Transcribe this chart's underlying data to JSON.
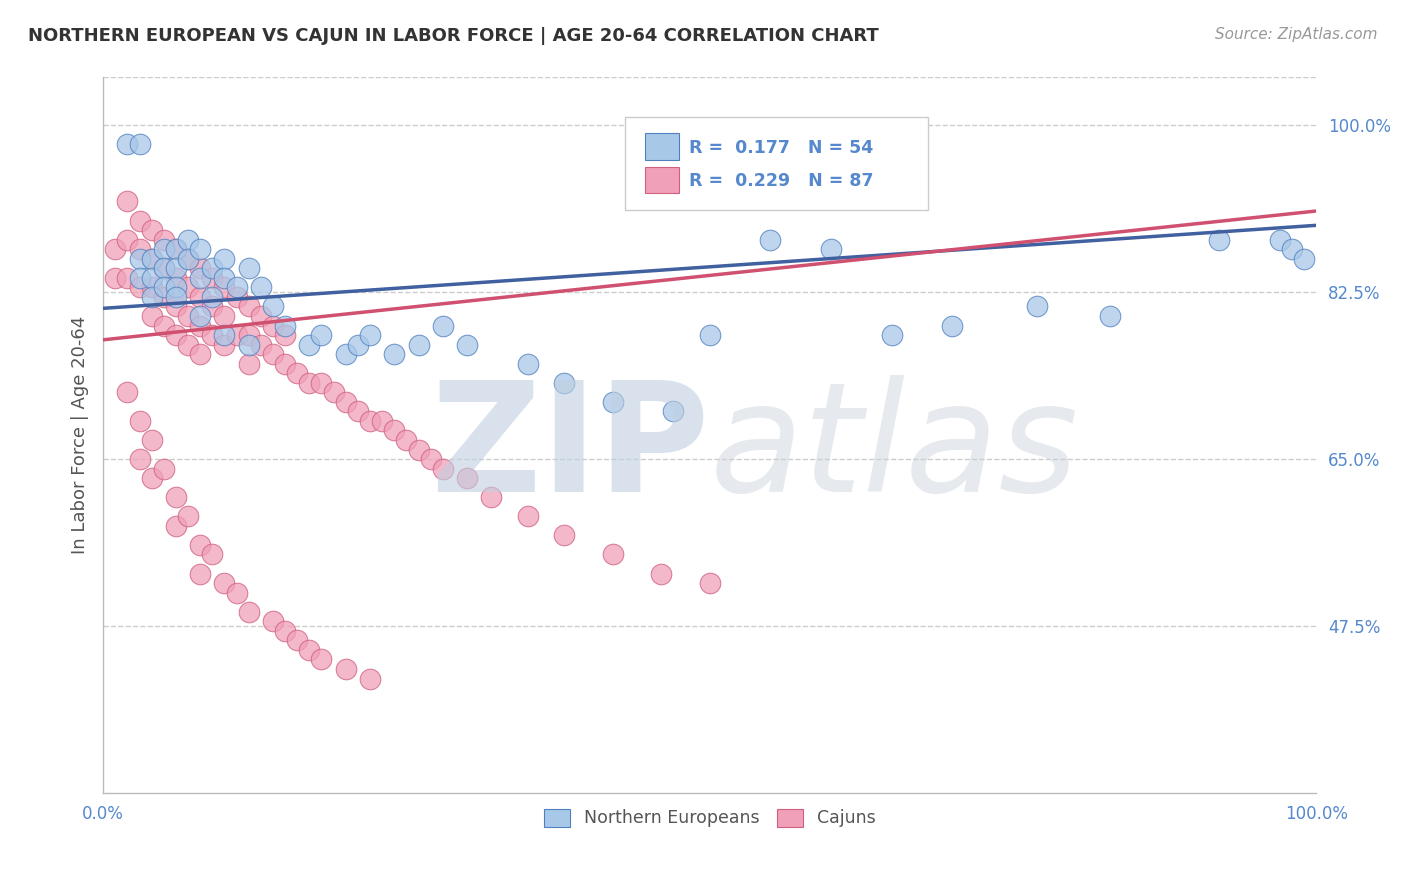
{
  "title": "NORTHERN EUROPEAN VS CAJUN IN LABOR FORCE | AGE 20-64 CORRELATION CHART",
  "source_text": "Source: ZipAtlas.com",
  "ylabel": "In Labor Force | Age 20-64",
  "xlim": [
    0,
    1
  ],
  "ylim": [
    0.3,
    1.05
  ],
  "ytick_vals": [
    0.475,
    0.65,
    0.825,
    1.0
  ],
  "ytick_labels": [
    "47.5%",
    "65.0%",
    "82.5%",
    "100.0%"
  ],
  "xtick_vals": [
    0,
    1.0
  ],
  "xtick_labels": [
    "0.0%",
    "100.0%"
  ],
  "blue_R": 0.177,
  "blue_N": 54,
  "pink_R": 0.229,
  "pink_N": 87,
  "blue_color": "#A8C8E8",
  "pink_color": "#F0A0B8",
  "blue_edge_color": "#5080C0",
  "pink_edge_color": "#D06080",
  "blue_line_color": "#4060A0",
  "pink_line_color": "#D05070",
  "tick_color": "#5588CC",
  "title_color": "#333333",
  "source_color": "#999999",
  "grid_color": "#CCCCCC",
  "background_color": "#FFFFFF",
  "blue_trend_x0": 0.0,
  "blue_trend_y0": 0.808,
  "blue_trend_x1": 1.0,
  "blue_trend_y1": 0.895,
  "pink_trend_x0": 0.0,
  "pink_trend_y0": 0.775,
  "pink_trend_x1": 1.0,
  "pink_trend_y1": 0.91,
  "blue_scatter_x": [
    0.02,
    0.03,
    0.03,
    0.03,
    0.04,
    0.04,
    0.04,
    0.05,
    0.05,
    0.05,
    0.06,
    0.06,
    0.06,
    0.07,
    0.07,
    0.08,
    0.08,
    0.09,
    0.09,
    0.1,
    0.1,
    0.11,
    0.12,
    0.13,
    0.14,
    0.15,
    0.17,
    0.18,
    0.2,
    0.21,
    0.22,
    0.24,
    0.26,
    0.28,
    0.3,
    0.35,
    0.38,
    0.42,
    0.47,
    0.5,
    0.55,
    0.6,
    0.65,
    0.7,
    0.77,
    0.83,
    0.92,
    0.97,
    0.98,
    0.99,
    0.06,
    0.08,
    0.1,
    0.12
  ],
  "blue_scatter_y": [
    0.98,
    0.98,
    0.86,
    0.84,
    0.86,
    0.84,
    0.82,
    0.87,
    0.85,
    0.83,
    0.87,
    0.85,
    0.83,
    0.88,
    0.86,
    0.87,
    0.84,
    0.85,
    0.82,
    0.86,
    0.84,
    0.83,
    0.85,
    0.83,
    0.81,
    0.79,
    0.77,
    0.78,
    0.76,
    0.77,
    0.78,
    0.76,
    0.77,
    0.79,
    0.77,
    0.75,
    0.73,
    0.71,
    0.7,
    0.78,
    0.88,
    0.87,
    0.78,
    0.79,
    0.81,
    0.8,
    0.88,
    0.88,
    0.87,
    0.86,
    0.82,
    0.8,
    0.78,
    0.77
  ],
  "pink_scatter_x": [
    0.01,
    0.01,
    0.02,
    0.02,
    0.02,
    0.03,
    0.03,
    0.03,
    0.04,
    0.04,
    0.04,
    0.04,
    0.05,
    0.05,
    0.05,
    0.05,
    0.06,
    0.06,
    0.06,
    0.06,
    0.07,
    0.07,
    0.07,
    0.07,
    0.08,
    0.08,
    0.08,
    0.08,
    0.09,
    0.09,
    0.09,
    0.1,
    0.1,
    0.1,
    0.11,
    0.11,
    0.12,
    0.12,
    0.12,
    0.13,
    0.13,
    0.14,
    0.14,
    0.15,
    0.15,
    0.16,
    0.17,
    0.18,
    0.19,
    0.2,
    0.21,
    0.22,
    0.23,
    0.24,
    0.25,
    0.26,
    0.27,
    0.28,
    0.3,
    0.32,
    0.35,
    0.38,
    0.42,
    0.46,
    0.5,
    0.02,
    0.03,
    0.03,
    0.04,
    0.04,
    0.05,
    0.06,
    0.06,
    0.07,
    0.08,
    0.08,
    0.09,
    0.1,
    0.11,
    0.12,
    0.14,
    0.15,
    0.16,
    0.17,
    0.18,
    0.2,
    0.22
  ],
  "pink_scatter_y": [
    0.87,
    0.84,
    0.92,
    0.88,
    0.84,
    0.9,
    0.87,
    0.83,
    0.89,
    0.86,
    0.83,
    0.8,
    0.88,
    0.85,
    0.82,
    0.79,
    0.87,
    0.84,
    0.81,
    0.78,
    0.86,
    0.83,
    0.8,
    0.77,
    0.85,
    0.82,
    0.79,
    0.76,
    0.84,
    0.81,
    0.78,
    0.83,
    0.8,
    0.77,
    0.82,
    0.78,
    0.81,
    0.78,
    0.75,
    0.8,
    0.77,
    0.79,
    0.76,
    0.78,
    0.75,
    0.74,
    0.73,
    0.73,
    0.72,
    0.71,
    0.7,
    0.69,
    0.69,
    0.68,
    0.67,
    0.66,
    0.65,
    0.64,
    0.63,
    0.61,
    0.59,
    0.57,
    0.55,
    0.53,
    0.52,
    0.72,
    0.69,
    0.65,
    0.67,
    0.63,
    0.64,
    0.61,
    0.58,
    0.59,
    0.56,
    0.53,
    0.55,
    0.52,
    0.51,
    0.49,
    0.48,
    0.47,
    0.46,
    0.45,
    0.44,
    0.43,
    0.42
  ]
}
